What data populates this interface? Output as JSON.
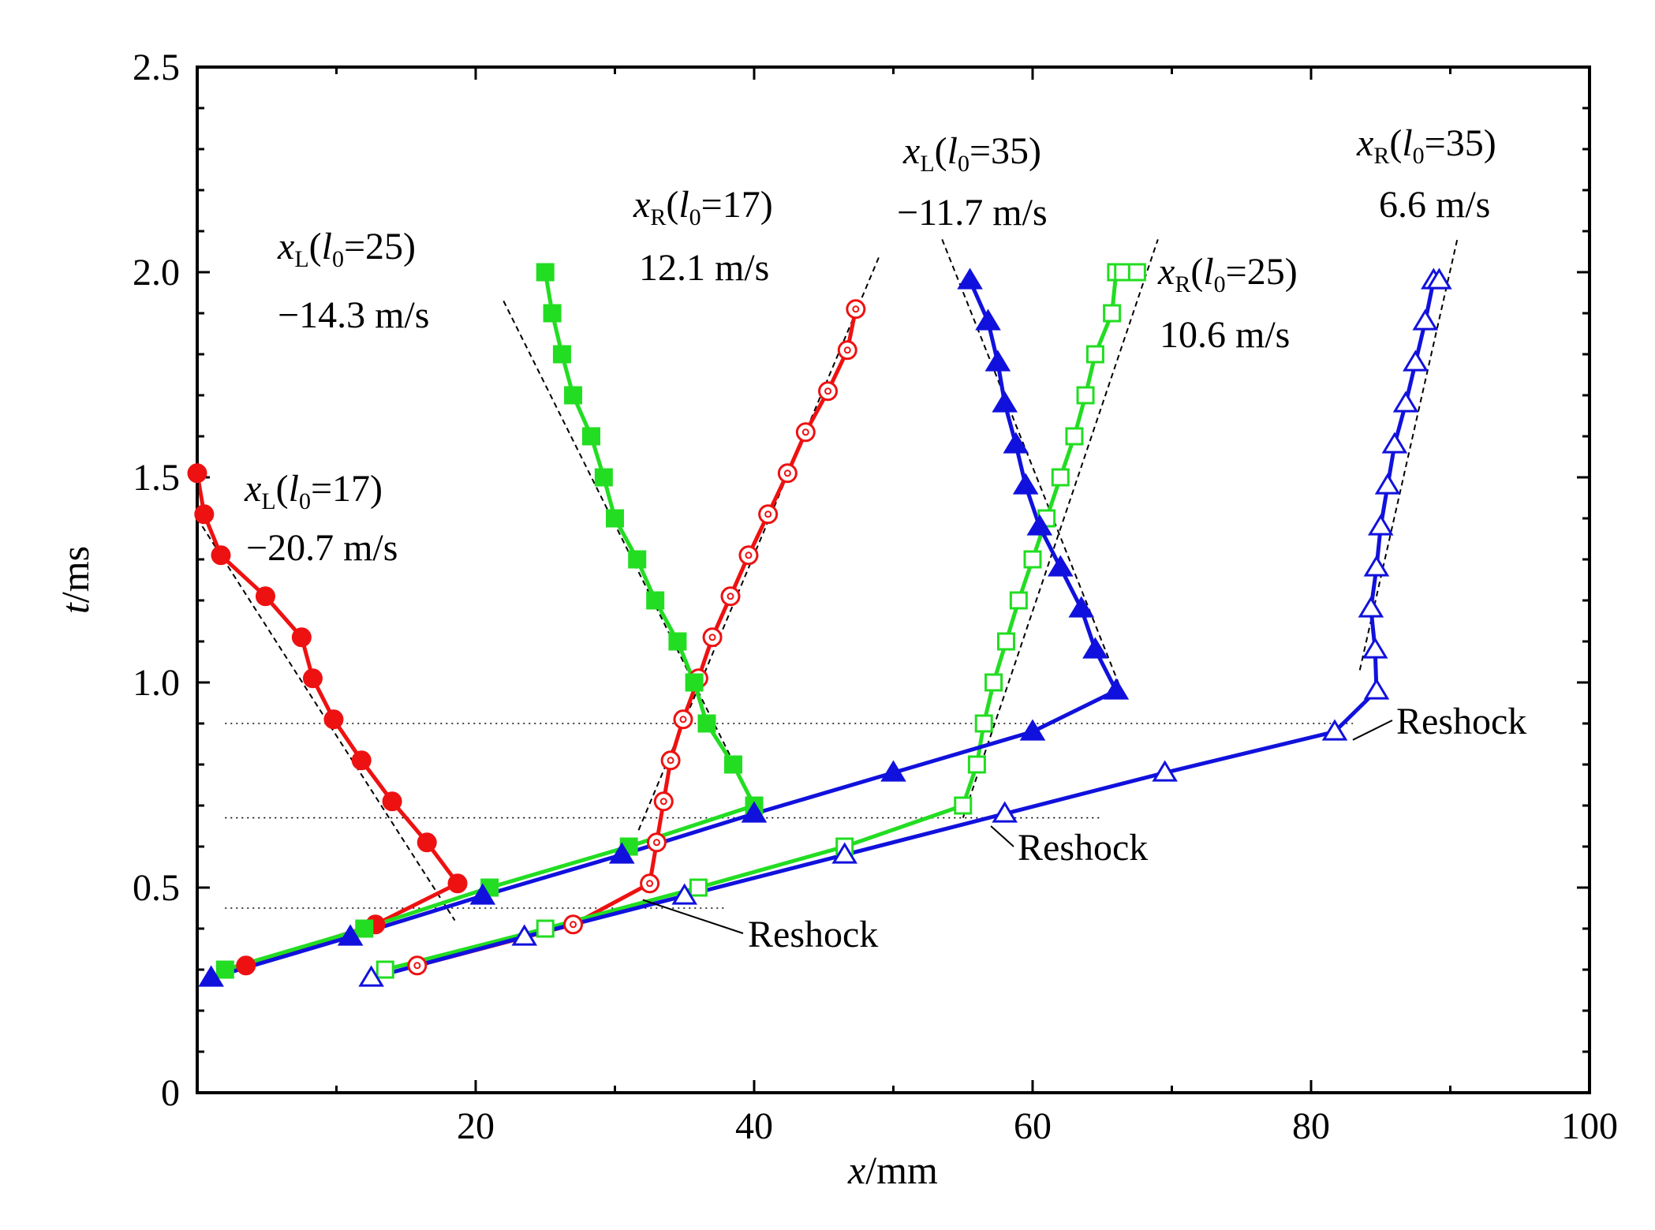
{
  "chart_data": {
    "type": "line",
    "xlabel": {
      "var": "x",
      "unit": "/mm"
    },
    "ylabel": {
      "var": "t",
      "unit": "/ms"
    },
    "xlim": [
      0,
      100
    ],
    "ylim": [
      0,
      2.5
    ],
    "x_ticks": [
      0,
      20,
      40,
      60,
      80,
      100
    ],
    "x_tick_labels": [
      "",
      "20",
      "40",
      "60",
      "80",
      "100"
    ],
    "y_ticks": [
      0,
      0.5,
      1.0,
      1.5,
      2.0,
      2.5
    ],
    "y_tick_labels": [
      "0",
      "0.5",
      "1.0",
      "1.5",
      "2.0",
      "2.5"
    ],
    "grid": false,
    "colors": {
      "red": "#ee1111",
      "green": "#22dd22",
      "blue": "#1111dd"
    },
    "series": [
      {
        "id": "xL17",
        "color": "#ee1111",
        "marker": "circle",
        "fill": true,
        "x": [
          3.5,
          12.8,
          18.7,
          16.5,
          14.0,
          11.8,
          9.8,
          8.3,
          7.5,
          4.9,
          1.7,
          0.5,
          0.0
        ],
        "y": [
          0.31,
          0.41,
          0.51,
          0.61,
          0.71,
          0.81,
          0.91,
          1.01,
          1.11,
          1.21,
          1.31,
          1.41,
          1.51
        ]
      },
      {
        "id": "xR17",
        "color": "#ee1111",
        "marker": "circle",
        "fill": false,
        "x": [
          15.8,
          27.0,
          32.5,
          33.0,
          33.5,
          34.0,
          34.9,
          36.0,
          37.0,
          38.3,
          39.6,
          41.0,
          42.4,
          43.7,
          45.3,
          46.7,
          47.3
        ],
        "y": [
          0.31,
          0.41,
          0.51,
          0.61,
          0.71,
          0.81,
          0.91,
          1.01,
          1.11,
          1.21,
          1.31,
          1.41,
          1.51,
          1.61,
          1.71,
          1.81,
          1.91
        ]
      },
      {
        "id": "xL25",
        "color": "#22dd22",
        "marker": "square",
        "fill": true,
        "x": [
          2.0,
          12.0,
          21.0,
          31.0,
          40.0,
          38.5,
          36.6,
          35.7,
          34.5,
          32.9,
          31.6,
          30.0,
          29.2,
          28.3,
          27.0,
          26.2,
          25.5,
          25.0
        ],
        "y": [
          0.3,
          0.4,
          0.5,
          0.6,
          0.7,
          0.8,
          0.9,
          1.0,
          1.1,
          1.2,
          1.3,
          1.4,
          1.5,
          1.6,
          1.7,
          1.8,
          1.9,
          2.0
        ]
      },
      {
        "id": "xR25",
        "color": "#22dd22",
        "marker": "square",
        "fill": false,
        "x": [
          13.5,
          25.0,
          36.0,
          46.5,
          55.0,
          56.0,
          56.5,
          57.2,
          58.1,
          59.0,
          60.0,
          61.0,
          62.0,
          63.0,
          63.8,
          64.5,
          65.7,
          66.0,
          66.5,
          67.5
        ],
        "y": [
          0.3,
          0.4,
          0.5,
          0.6,
          0.7,
          0.8,
          0.9,
          1.0,
          1.1,
          1.2,
          1.3,
          1.4,
          1.5,
          1.6,
          1.7,
          1.8,
          1.9,
          2.0,
          2.0,
          2.0
        ]
      },
      {
        "id": "xL35",
        "color": "#1111dd",
        "marker": "triangle",
        "fill": true,
        "x": [
          1.0,
          11.0,
          20.5,
          30.5,
          40.0,
          50.0,
          60.0,
          66.0,
          64.5,
          63.5,
          62.0,
          60.5,
          59.5,
          58.8,
          58.0,
          57.5,
          56.8,
          55.5
        ],
        "y": [
          0.28,
          0.38,
          0.48,
          0.58,
          0.68,
          0.78,
          0.88,
          0.98,
          1.08,
          1.18,
          1.28,
          1.38,
          1.48,
          1.58,
          1.68,
          1.78,
          1.88,
          1.98
        ]
      },
      {
        "id": "xR35",
        "color": "#1111dd",
        "marker": "triangle",
        "fill": false,
        "x": [
          12.5,
          23.5,
          35.0,
          46.5,
          58.0,
          69.5,
          81.7,
          84.7,
          84.6,
          84.3,
          84.7,
          85.0,
          85.5,
          86.0,
          86.8,
          87.5,
          88.2,
          88.8,
          89.2
        ],
        "y": [
          0.28,
          0.38,
          0.48,
          0.58,
          0.68,
          0.78,
          0.88,
          0.98,
          1.08,
          1.18,
          1.28,
          1.38,
          1.48,
          1.58,
          1.68,
          1.78,
          1.88,
          1.98,
          1.98
        ]
      }
    ],
    "fit_lines": [
      {
        "id": "fit-xL17",
        "x": [
          0.0,
          18.5
        ],
        "y": [
          1.4,
          0.42
        ]
      },
      {
        "id": "fit-xR17",
        "x": [
          31.7,
          49.0
        ],
        "y": [
          0.64,
          2.04
        ]
      },
      {
        "id": "fit-xL25",
        "x": [
          22.0,
          40.5
        ],
        "y": [
          1.93,
          0.67
        ]
      },
      {
        "id": "fit-xR25",
        "x": [
          55.0,
          69.0
        ],
        "y": [
          0.67,
          2.08
        ]
      },
      {
        "id": "fit-xL35",
        "x": [
          53.5,
          66.5
        ],
        "y": [
          2.08,
          0.97
        ]
      },
      {
        "id": "fit-xR35",
        "x": [
          83.5,
          90.5
        ],
        "y": [
          1.03,
          2.08
        ]
      }
    ],
    "reference_levels": [
      {
        "y": 0.45,
        "x": [
          2,
          38
        ]
      },
      {
        "y": 0.67,
        "x": [
          2,
          65
        ]
      },
      {
        "y": 0.9,
        "x": [
          2,
          83
        ]
      }
    ],
    "annotations": [
      {
        "id": "xL17",
        "var": "x",
        "sub": "L",
        "param": "l",
        "param_sub": "0",
        "value": "=17)",
        "speed": "−20.7 m/s"
      },
      {
        "id": "xL25",
        "var": "x",
        "sub": "L",
        "param": "l",
        "param_sub": "0",
        "value": "=25)",
        "speed": "−14.3 m/s"
      },
      {
        "id": "xR17",
        "var": "x",
        "sub": "R",
        "param": "l",
        "param_sub": "0",
        "value": "=17)",
        "speed": "12.1 m/s"
      },
      {
        "id": "xL35",
        "var": "x",
        "sub": "L",
        "param": "l",
        "param_sub": "0",
        "value": "=35)",
        "speed": "−11.7 m/s"
      },
      {
        "id": "xR25",
        "var": "x",
        "sub": "R",
        "param": "l",
        "param_sub": "0",
        "value": "=25)",
        "speed": "10.6 m/s"
      },
      {
        "id": "xR35",
        "var": "x",
        "sub": "R",
        "param": "l",
        "param_sub": "0",
        "value": "=35)",
        "speed": "6.6 m/s"
      }
    ],
    "reshock_labels": [
      {
        "text": "Reshock",
        "point": [
          32,
          0.47
        ]
      },
      {
        "text": "Reshock",
        "point": [
          57,
          0.65
        ]
      },
      {
        "text": "Reshock",
        "point": [
          83,
          0.86
        ]
      }
    ]
  }
}
